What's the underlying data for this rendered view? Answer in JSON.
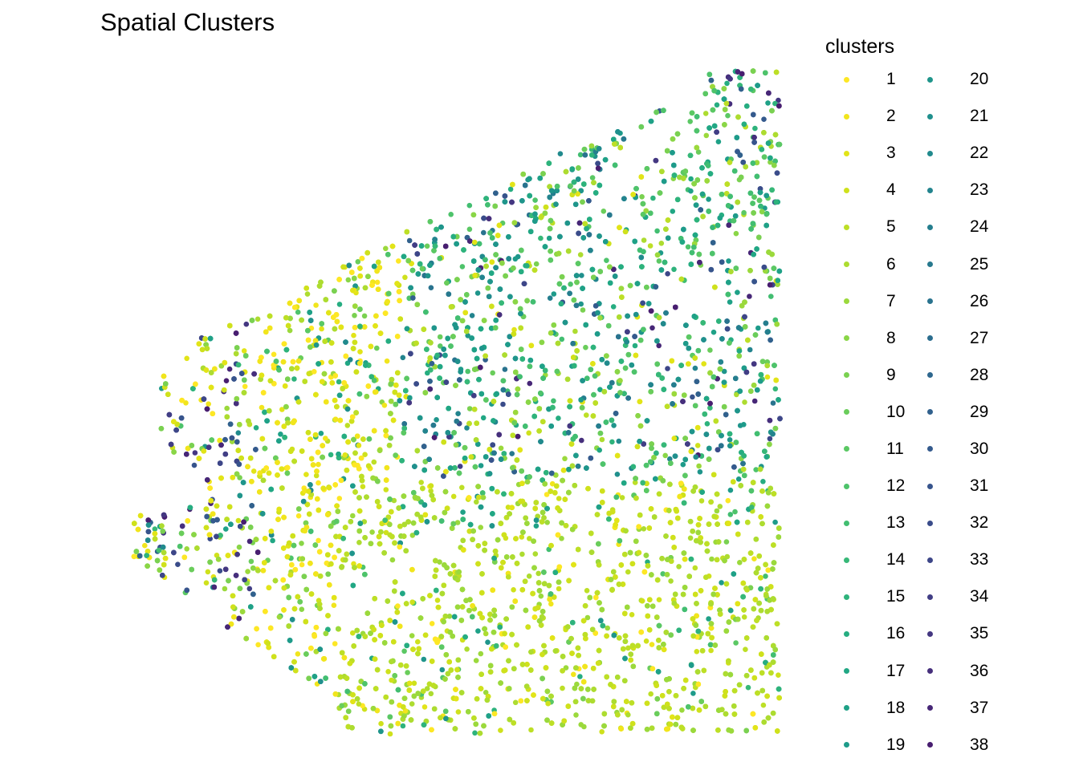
{
  "chart_data": {
    "type": "scatter",
    "title": "Spatial Clusters",
    "xlabel": "",
    "ylabel": "",
    "grid": false,
    "axes_visible": false,
    "legend": {
      "title": "clusters",
      "placement": "right",
      "columns": 2,
      "entries": [
        {
          "label": "1",
          "color": "#FDE725"
        },
        {
          "label": "2",
          "color": "#F1E51D"
        },
        {
          "label": "3",
          "color": "#E2E418"
        },
        {
          "label": "4",
          "color": "#CFE11C"
        },
        {
          "label": "5",
          "color": "#BDDF26"
        },
        {
          "label": "6",
          "color": "#ADDC30"
        },
        {
          "label": "7",
          "color": "#9BD93C"
        },
        {
          "label": "8",
          "color": "#8AD647"
        },
        {
          "label": "9",
          "color": "#7AD151"
        },
        {
          "label": "10",
          "color": "#6ACD5B"
        },
        {
          "label": "11",
          "color": "#5BC864"
        },
        {
          "label": "12",
          "color": "#4EC36B"
        },
        {
          "label": "13",
          "color": "#42BE71"
        },
        {
          "label": "14",
          "color": "#37B878"
        },
        {
          "label": "15",
          "color": "#2EB37C"
        },
        {
          "label": "16",
          "color": "#26AD81"
        },
        {
          "label": "17",
          "color": "#21A784"
        },
        {
          "label": "18",
          "color": "#1FA187"
        },
        {
          "label": "19",
          "color": "#1E9B8A"
        },
        {
          "label": "20",
          "color": "#1F958B"
        },
        {
          "label": "21",
          "color": "#20908D"
        },
        {
          "label": "22",
          "color": "#218A8D"
        },
        {
          "label": "23",
          "color": "#23848E"
        },
        {
          "label": "24",
          "color": "#257E8E"
        },
        {
          "label": "25",
          "color": "#27798E"
        },
        {
          "label": "26",
          "color": "#29738E"
        },
        {
          "label": "27",
          "color": "#2B6D8E"
        },
        {
          "label": "28",
          "color": "#2E678E"
        },
        {
          "label": "29",
          "color": "#31618D"
        },
        {
          "label": "30",
          "color": "#345A8D"
        },
        {
          "label": "31",
          "color": "#37548C"
        },
        {
          "label": "32",
          "color": "#3A4C8A"
        },
        {
          "label": "33",
          "color": "#3D4688"
        },
        {
          "label": "34",
          "color": "#413E85"
        },
        {
          "label": "35",
          "color": "#443781"
        },
        {
          "label": "36",
          "color": "#462F7C"
        },
        {
          "label": "37",
          "color": "#472777"
        },
        {
          "label": "38",
          "color": "#481E70"
        }
      ]
    },
    "series_note_points_generated": true
  }
}
